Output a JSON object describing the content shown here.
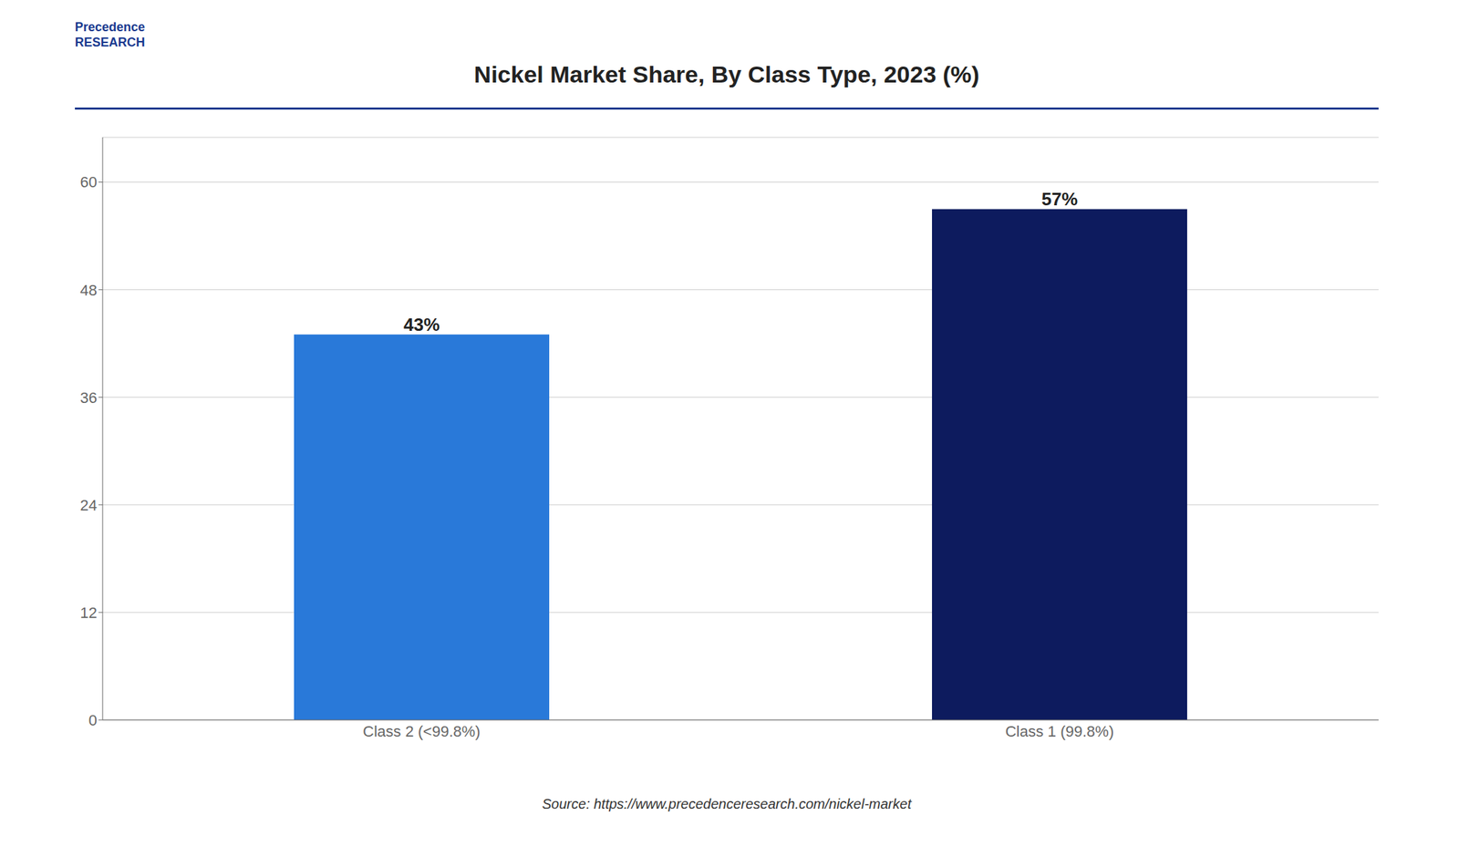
{
  "chart_data": {
    "type": "bar",
    "title": "Nickel Market Share, By Class Type, 2023 (%)",
    "categories": [
      "Class 2 (<99.8%)",
      "Class 1 (99.8%)"
    ],
    "values": [
      43,
      57
    ],
    "value_labels": [
      "43%",
      "57%"
    ],
    "data_labels": true,
    "colors": [
      "#2979D9",
      "#0D1B5E"
    ],
    "ylim": [
      0,
      65
    ],
    "yticks": [
      0,
      12,
      24,
      36,
      48,
      60
    ],
    "grid": true,
    "annotations": [
      "Precedence\nRESEARCH",
      "Source: https://www.precedenceresearch.com/nickel-market"
    ]
  }
}
